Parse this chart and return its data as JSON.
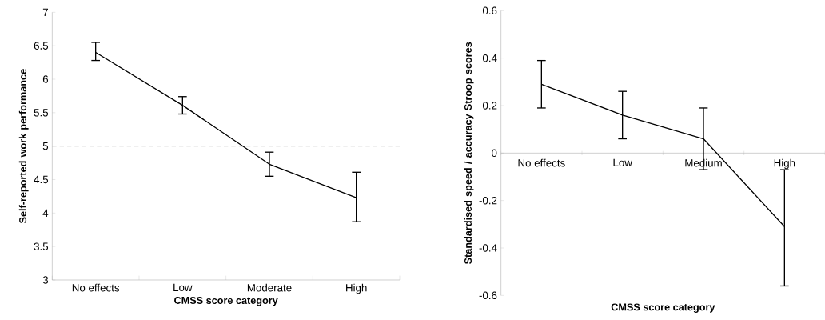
{
  "chart_data": [
    {
      "type": "line",
      "xlabel": "CMSS score category",
      "ylabel": "Self-reported work performance",
      "categories": [
        "No effects",
        "Low",
        "Moderate",
        "High"
      ],
      "color": "#000000",
      "values": [
        6.4,
        5.61,
        4.73,
        4.23
      ],
      "errors": [
        [
          6.28,
          6.55
        ],
        [
          5.48,
          5.74
        ],
        [
          4.55,
          4.91
        ],
        [
          3.87,
          4.61
        ]
      ],
      "ylim": [
        3,
        7
      ],
      "yticks": [
        3,
        3.5,
        4,
        4.5,
        5,
        5.5,
        6,
        6.5,
        7
      ],
      "ref_lines": [
        {
          "axis": "y",
          "value": 5,
          "color": "#000000",
          "line_style": "dashed"
        }
      ]
    },
    {
      "type": "line",
      "xlabel": "CMSS score category",
      "ylabel": "Standardised speed / accuracy Stroop scores",
      "categories": [
        "No effects",
        "Low",
        "Medium",
        "High"
      ],
      "color": "#000000",
      "values": [
        0.29,
        0.16,
        0.06,
        -0.31
      ],
      "errors": [
        [
          0.19,
          0.39
        ],
        [
          0.06,
          0.26
        ],
        [
          -0.07,
          0.19
        ],
        [
          -0.56,
          -0.07
        ]
      ],
      "ylim": [
        -0.6,
        0.6
      ],
      "yticks": [
        -0.6,
        -0.4,
        -0.2,
        0,
        0.2,
        0.4,
        0.6
      ]
    }
  ]
}
